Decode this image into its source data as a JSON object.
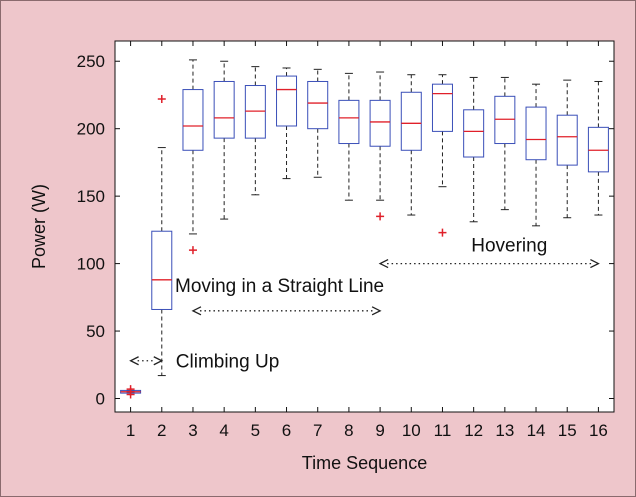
{
  "colors": {
    "background": "#eec6cb",
    "plot_bg": "#ffffff",
    "box": "#3a4fb8",
    "median": "#e0202a",
    "outlier": "#e0202a",
    "whisker": "#222222",
    "axis": "#111111",
    "annotation_arrow": "#222222"
  },
  "chart_data": {
    "type": "boxplot",
    "xlabel": "Time Sequence",
    "ylabel": "Power (W)",
    "ylim": [
      -10,
      265
    ],
    "yticks": [
      0,
      50,
      100,
      150,
      200,
      250
    ],
    "categories": [
      "1",
      "2",
      "3",
      "4",
      "5",
      "6",
      "7",
      "8",
      "9",
      "10",
      "11",
      "12",
      "13",
      "14",
      "15",
      "16"
    ],
    "grid": false,
    "boxes": [
      {
        "label": "1",
        "whisker_low": 4,
        "q1": 4,
        "median": 5,
        "q3": 6,
        "whisker_high": 6,
        "outliers": [
          3,
          5,
          7
        ]
      },
      {
        "label": "2",
        "whisker_low": 17,
        "q1": 66,
        "median": 88,
        "q3": 124,
        "whisker_high": 186,
        "outliers": [
          222
        ]
      },
      {
        "label": "3",
        "whisker_low": 122,
        "q1": 184,
        "median": 202,
        "q3": 229,
        "whisker_high": 251,
        "outliers": [
          110
        ]
      },
      {
        "label": "4",
        "whisker_low": 133,
        "q1": 193,
        "median": 208,
        "q3": 235,
        "whisker_high": 250,
        "outliers": []
      },
      {
        "label": "5",
        "whisker_low": 151,
        "q1": 193,
        "median": 213,
        "q3": 232,
        "whisker_high": 246,
        "outliers": []
      },
      {
        "label": "6",
        "whisker_low": 163,
        "q1": 202,
        "median": 229,
        "q3": 239,
        "whisker_high": 245,
        "outliers": []
      },
      {
        "label": "7",
        "whisker_low": 164,
        "q1": 200,
        "median": 219,
        "q3": 235,
        "whisker_high": 244,
        "outliers": []
      },
      {
        "label": "8",
        "whisker_low": 147,
        "q1": 189,
        "median": 208,
        "q3": 221,
        "whisker_high": 241,
        "outliers": []
      },
      {
        "label": "9",
        "whisker_low": 147,
        "q1": 187,
        "median": 205,
        "q3": 221,
        "whisker_high": 242,
        "outliers": [
          135
        ]
      },
      {
        "label": "10",
        "whisker_low": 136,
        "q1": 184,
        "median": 204,
        "q3": 227,
        "whisker_high": 240,
        "outliers": []
      },
      {
        "label": "11",
        "whisker_low": 157,
        "q1": 198,
        "median": 226,
        "q3": 233,
        "whisker_high": 240,
        "outliers": [
          123
        ]
      },
      {
        "label": "12",
        "whisker_low": 131,
        "q1": 179,
        "median": 198,
        "q3": 214,
        "whisker_high": 238,
        "outliers": []
      },
      {
        "label": "13",
        "whisker_low": 140,
        "q1": 189,
        "median": 207,
        "q3": 224,
        "whisker_high": 238,
        "outliers": []
      },
      {
        "label": "14",
        "whisker_low": 128,
        "q1": 177,
        "median": 192,
        "q3": 216,
        "whisker_high": 233,
        "outliers": []
      },
      {
        "label": "15",
        "whisker_low": 134,
        "q1": 173,
        "median": 194,
        "q3": 210,
        "whisker_high": 236,
        "outliers": []
      },
      {
        "label": "16",
        "whisker_low": 136,
        "q1": 168,
        "median": 184,
        "q3": 201,
        "whisker_high": 235,
        "outliers": []
      }
    ],
    "annotations": [
      {
        "text": "Climbing Up",
        "from": 1,
        "to": 2,
        "y": 28
      },
      {
        "text": "Moving in a Straight Line",
        "from": 3,
        "to": 9,
        "y": 65
      },
      {
        "text": "Hovering",
        "from": 9,
        "to": 16,
        "y": 100
      }
    ]
  }
}
